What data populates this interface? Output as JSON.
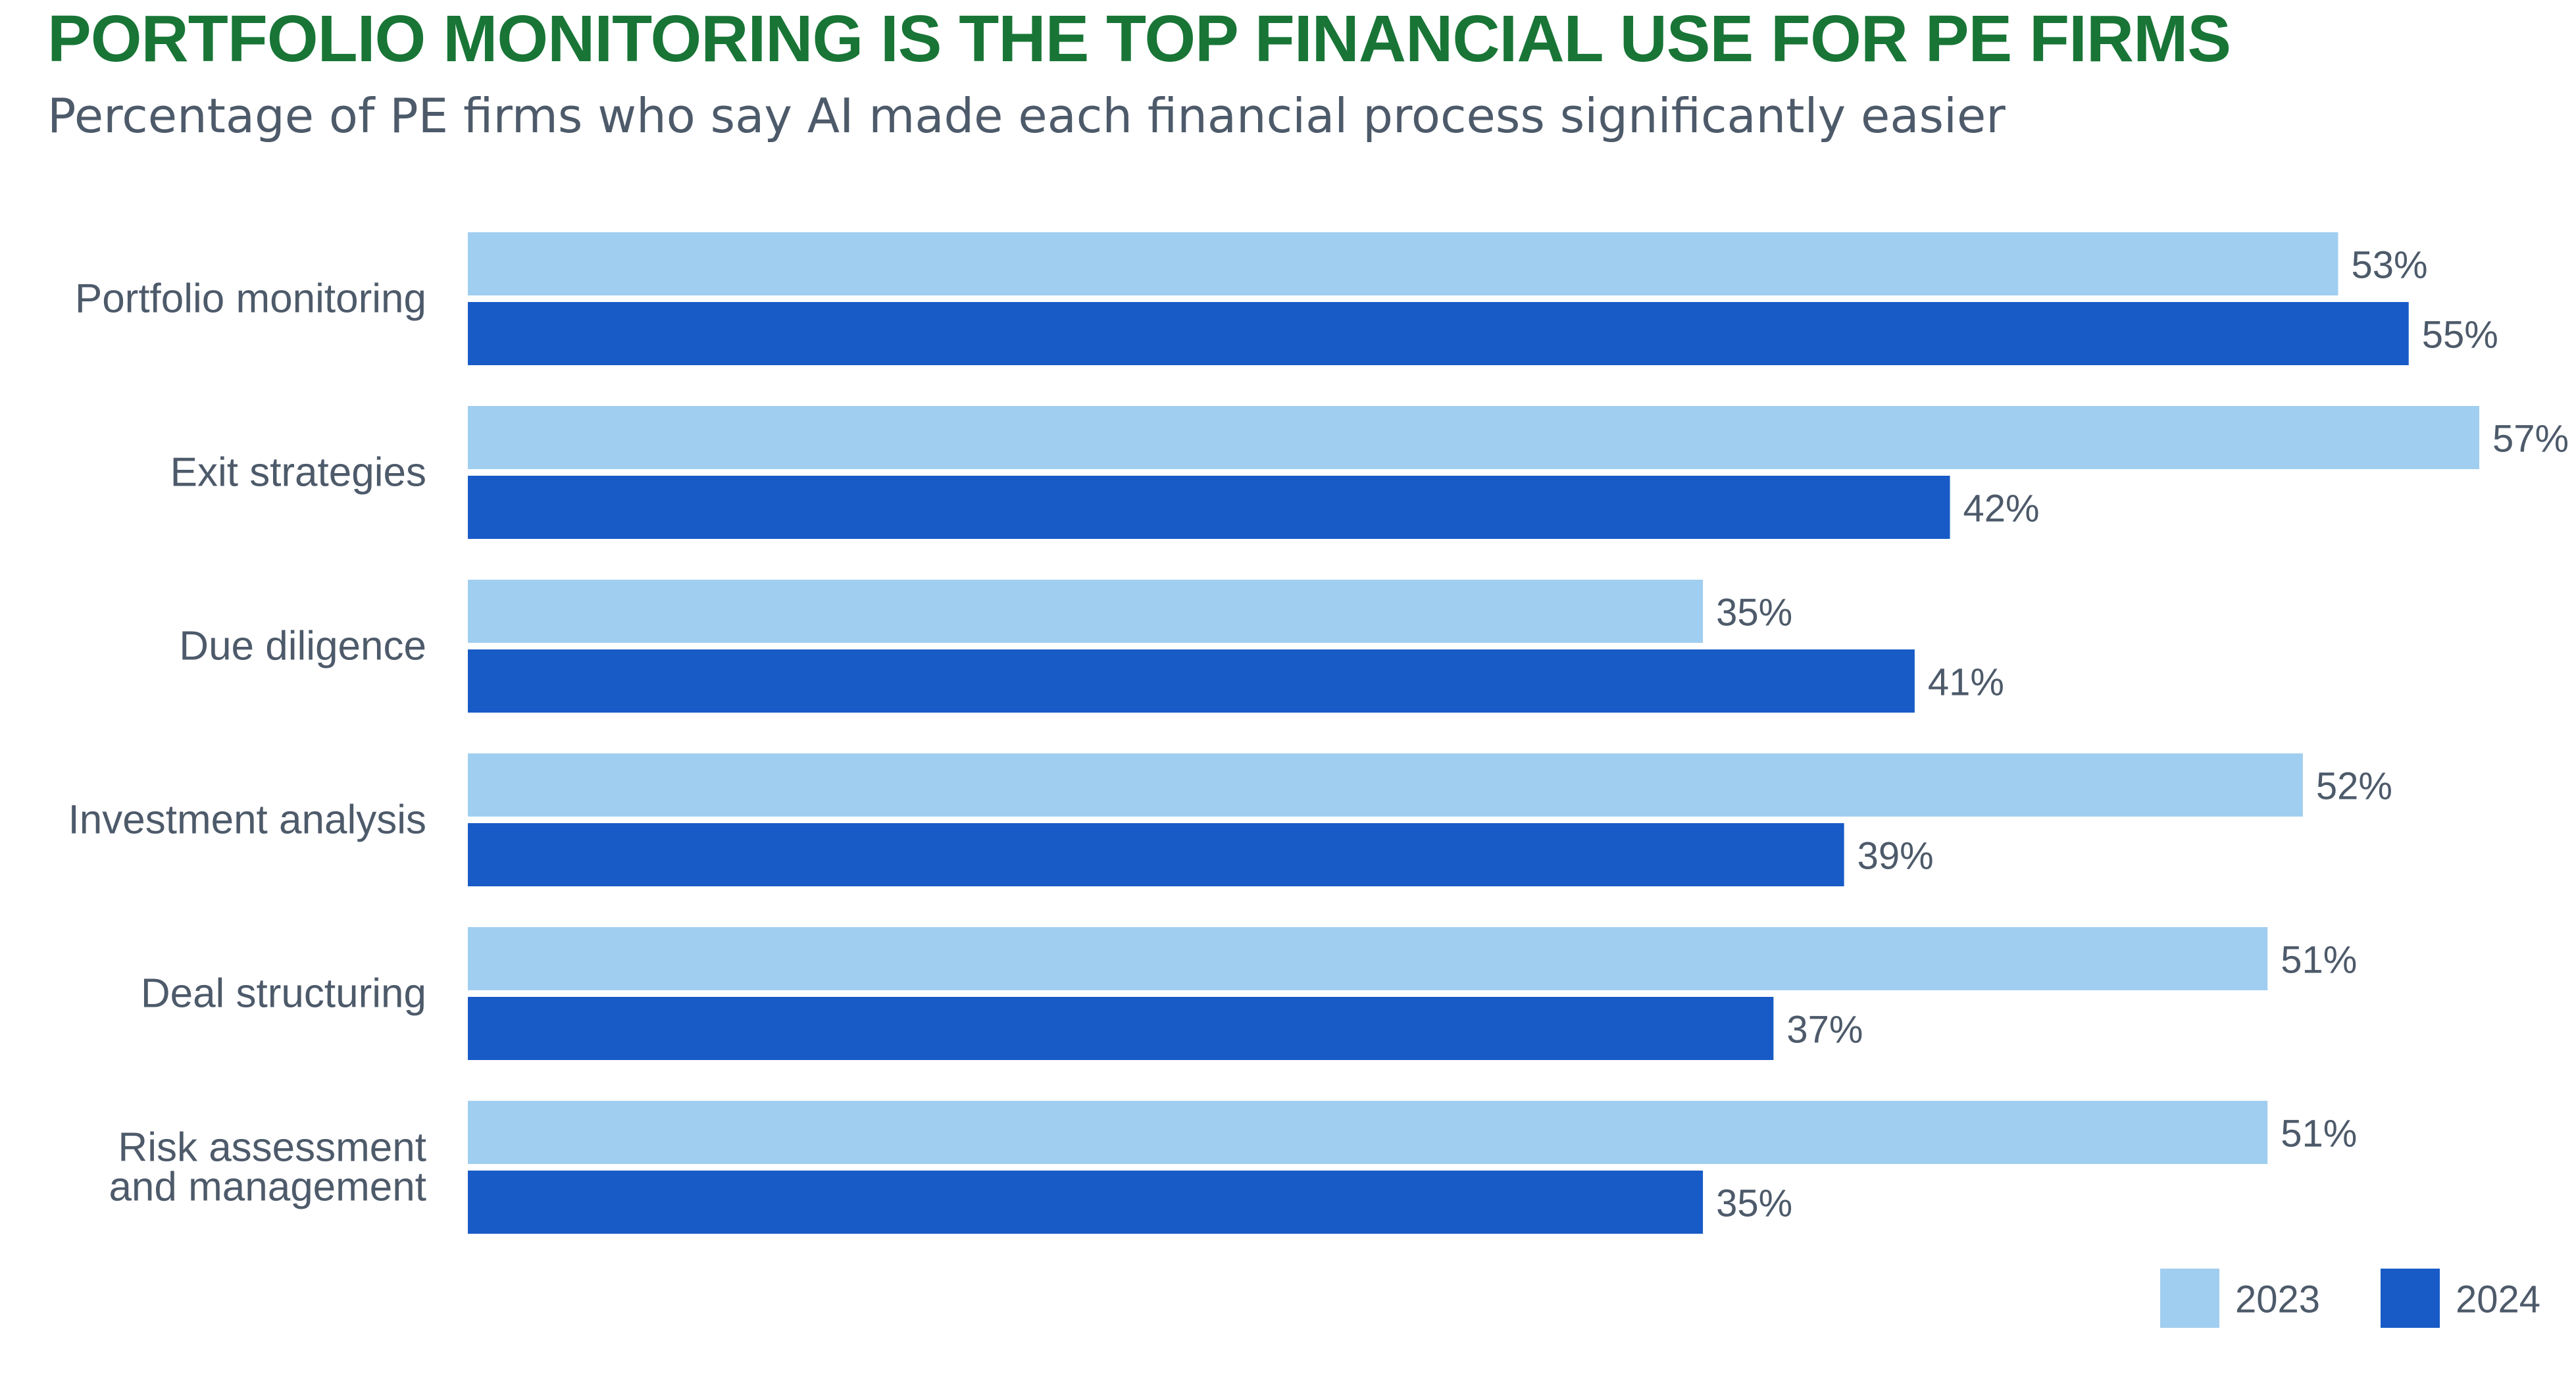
{
  "colors": {
    "title": "#187536",
    "subtitle": "#4d5a6a",
    "text": "#4d5a6a",
    "series_2023": "#a0cef0",
    "series_2024": "#185bc7"
  },
  "chart_data": {
    "type": "bar",
    "orientation": "horizontal",
    "title": "PORTFOLIO MONITORING IS THE TOP FINANCIAL USE FOR PE FIRMS",
    "subtitle": "Percentage of PE firms who say AI made each financial process significantly easier",
    "categories": [
      [
        "Portfolio monitoring"
      ],
      [
        "Exit strategies"
      ],
      [
        "Due diligence"
      ],
      [
        "Investment analysis"
      ],
      [
        "Deal structuring"
      ],
      [
        "Risk assessment",
        "and management"
      ]
    ],
    "series": [
      {
        "name": "2023",
        "color": "#a0cef0",
        "values": [
          53,
          57,
          35,
          52,
          51,
          51
        ],
        "labels": [
          "53%",
          "57%",
          "35%",
          "52%",
          "51%",
          "51%"
        ]
      },
      {
        "name": "2024",
        "color": "#185bc7",
        "values": [
          55,
          42,
          41,
          39,
          37,
          35
        ],
        "labels": [
          "55%",
          "42%",
          "41%",
          "39%",
          "37%",
          "35%"
        ]
      }
    ],
    "xlim": [
      0,
      57
    ],
    "grid": false,
    "legend": "bottom-right"
  }
}
